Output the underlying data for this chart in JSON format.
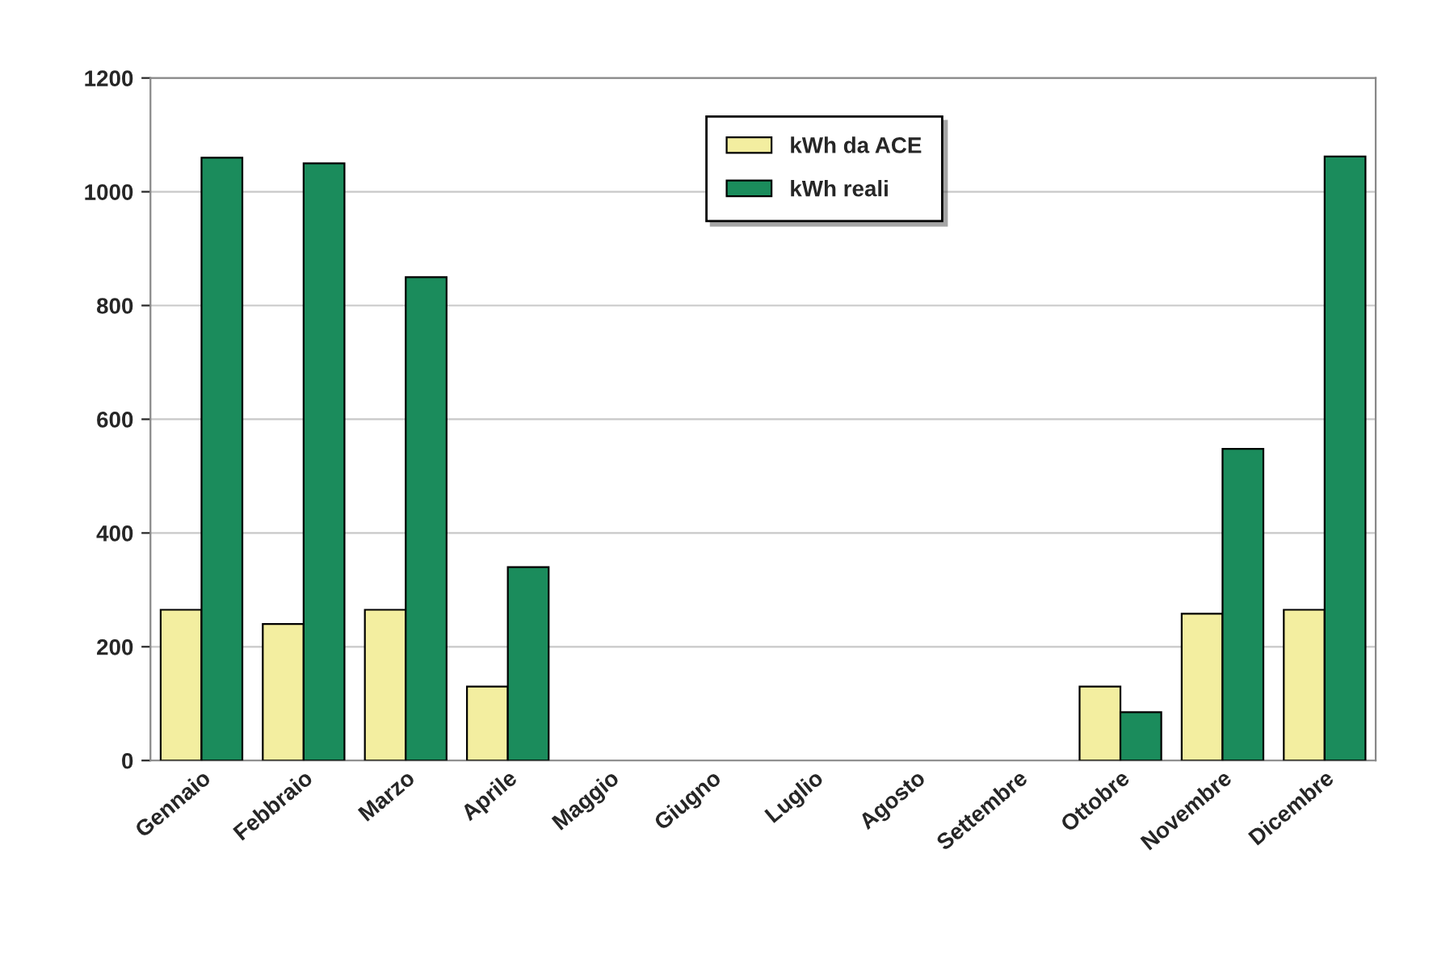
{
  "chart_data": {
    "type": "bar",
    "categories": [
      "Gennaio",
      "Febbraio",
      "Marzo",
      "Aprile",
      "Maggio",
      "Giugno",
      "Luglio",
      "Agosto",
      "Settembre",
      "Ottobre",
      "Novembre",
      "Dicembre"
    ],
    "series": [
      {
        "name": "kWh da ACE",
        "color": "#f3eea0",
        "values": [
          265,
          240,
          265,
          130,
          null,
          null,
          null,
          null,
          null,
          130,
          258,
          265
        ]
      },
      {
        "name": "kWh reali",
        "color": "#1b8c5c",
        "values": [
          1060,
          1050,
          850,
          340,
          null,
          null,
          null,
          null,
          null,
          85,
          548,
          1062
        ]
      }
    ],
    "ylim": [
      0,
      1200
    ],
    "yticks": [
      0,
      200,
      400,
      600,
      800,
      1000,
      1200
    ],
    "grid": "y",
    "legend": "top"
  }
}
